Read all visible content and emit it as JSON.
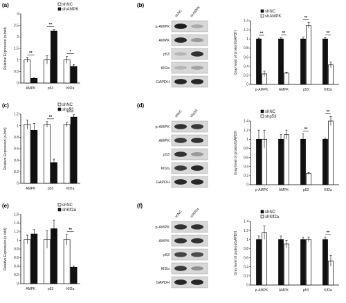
{
  "panels": [
    {
      "id": "a",
      "label": "(a)",
      "chart": 0
    },
    {
      "id": "b",
      "label": "(b)",
      "chart": 1,
      "blot": 0
    },
    {
      "id": "c",
      "label": "(c)",
      "chart": 2
    },
    {
      "id": "d",
      "label": "(d)",
      "chart": 3,
      "blot": 1
    },
    {
      "id": "e",
      "label": "(e)",
      "chart": 4
    },
    {
      "id": "f",
      "label": "(f)",
      "chart": 5,
      "blot": 2
    }
  ],
  "blots": [
    {
      "lanes": [
        "shNC",
        "shAMPK"
      ],
      "rows": [
        "p-AMPK",
        "AMPK",
        "p53",
        "Klf2a",
        "GAPDH"
      ],
      "intensity": [
        [
          0.95,
          0.2
        ],
        [
          0.9,
          0.3
        ],
        [
          0.15,
          0.85
        ],
        [
          0.15,
          0.25
        ],
        [
          0.9,
          0.9
        ]
      ]
    },
    {
      "lanes": [
        "shNC",
        "shp53"
      ],
      "rows": [
        "p-AMPK",
        "AMPK",
        "p53",
        "Klf2a",
        "GAPDH"
      ],
      "intensity": [
        [
          0.85,
          0.8
        ],
        [
          0.8,
          0.85
        ],
        [
          0.85,
          0.3
        ],
        [
          0.8,
          0.9
        ],
        [
          0.9,
          0.9
        ]
      ]
    },
    {
      "lanes": [
        "shNC",
        "shKlf2a"
      ],
      "rows": [
        "p-AMPK",
        "AMPK",
        "p53",
        "Klf2a",
        "GAPDH"
      ],
      "intensity": [
        [
          0.85,
          0.85
        ],
        [
          0.85,
          0.85
        ],
        [
          0.75,
          0.7
        ],
        [
          0.8,
          0.35
        ],
        [
          0.9,
          0.9
        ]
      ]
    }
  ],
  "chart_data": [
    {
      "type": "bar",
      "panel": "a",
      "categories": [
        "AMPK",
        "p53",
        "Klf2a"
      ],
      "series": [
        {
          "name": "shNC",
          "values": [
            1.0,
            1.0,
            1.0
          ],
          "errors": [
            0.1,
            0.18,
            0.15
          ],
          "fill": "white"
        },
        {
          "name": "shAMPK",
          "values": [
            0.2,
            2.25,
            0.72
          ],
          "errors": [
            0.02,
            0.07,
            0.08
          ],
          "fill": "black"
        }
      ],
      "ylabel": "Relative Expression (n-fold)",
      "ylim": [
        0,
        3
      ],
      "yticks": [
        0,
        0.5,
        1.0,
        1.5,
        2.0,
        2.5,
        3.0
      ],
      "sig": [
        "**",
        "**",
        "*"
      ],
      "legend": "top-right"
    },
    {
      "type": "bar",
      "panel": "b",
      "categories": [
        "p-AMPK",
        "AMPK",
        "p53",
        "Klf2a"
      ],
      "series": [
        {
          "name": "shNC",
          "values": [
            1.0,
            1.0,
            1.0,
            1.0
          ],
          "errors": [
            0.02,
            0.03,
            0.04,
            0.03
          ],
          "fill": "black"
        },
        {
          "name": "shAMPK",
          "values": [
            0.23,
            0.25,
            1.3,
            0.43
          ],
          "errors": [
            0.06,
            0.02,
            0.06,
            0.06
          ],
          "fill": "white"
        }
      ],
      "ylabel": "Gray level of protein/GAPDH",
      "ylim": [
        0,
        1.4
      ],
      "yticks": [
        0,
        0.2,
        0.4,
        0.6,
        0.8,
        1.0,
        1.2,
        1.4
      ],
      "sig": [
        "**",
        "**",
        "**",
        "**"
      ],
      "legend": "top-left"
    },
    {
      "type": "bar",
      "panel": "c",
      "categories": [
        "AMPK",
        "p53",
        "Klf2a"
      ],
      "series": [
        {
          "name": "shNC",
          "values": [
            1.02,
            1.02,
            1.02
          ],
          "errors": [
            0.08,
            0.05,
            0.04
          ],
          "fill": "white"
        },
        {
          "name": "shp53",
          "values": [
            0.92,
            0.36,
            1.15
          ],
          "errors": [
            0.12,
            0.06,
            0.04
          ],
          "fill": "black"
        }
      ],
      "ylabel": "Relative Expression (n-fold)",
      "ylim": [
        0,
        1.2
      ],
      "yticks": [
        0,
        0.2,
        0.4,
        0.6,
        0.8,
        1.0,
        1.2
      ],
      "sig": [
        "",
        "**",
        "*"
      ],
      "legend": "top-right"
    },
    {
      "type": "bar",
      "panel": "d",
      "categories": [
        "p-AMPK",
        "AMPK",
        "p53",
        "Klf2a"
      ],
      "series": [
        {
          "name": "shNC",
          "values": [
            1.0,
            1.0,
            1.0,
            1.0
          ],
          "errors": [
            0.2,
            0.1,
            0.12,
            0.03
          ],
          "fill": "black"
        },
        {
          "name": "shp53",
          "values": [
            1.0,
            1.1,
            0.25,
            1.4
          ],
          "errors": [
            0.2,
            0.1,
            0.02,
            0.1
          ],
          "fill": "white"
        }
      ],
      "ylabel": "Gray level of protein/GAPDH",
      "ylim": [
        0,
        1.4
      ],
      "yticks": [
        0,
        0.2,
        0.4,
        0.6,
        0.8,
        1.0,
        1.2,
        1.4
      ],
      "sig": [
        "",
        "",
        "**",
        "**"
      ],
      "legend": "top-left"
    },
    {
      "type": "bar",
      "panel": "e",
      "categories": [
        "AMPK",
        "p53",
        "Klf2a"
      ],
      "series": [
        {
          "name": "shNC",
          "values": [
            1.02,
            1.02,
            1.02
          ],
          "errors": [
            0.1,
            0.2,
            0.12
          ],
          "fill": "white"
        },
        {
          "name": "shKlf2a",
          "values": [
            1.15,
            1.27,
            0.38
          ],
          "errors": [
            0.1,
            0.2,
            0.03
          ],
          "fill": "black"
        }
      ],
      "ylabel": "Relative Expression (n-fold)",
      "ylim": [
        0,
        1.6
      ],
      "yticks": [
        0,
        0.2,
        0.4,
        0.6,
        0.8,
        1.0,
        1.2,
        1.4,
        1.6
      ],
      "sig": [
        "",
        "",
        "**"
      ],
      "legend": "top-right"
    },
    {
      "type": "bar",
      "panel": "f",
      "categories": [
        "p-AMPK",
        "AMPK",
        "p53",
        "Klf2a"
      ],
      "series": [
        {
          "name": "shNC",
          "values": [
            1.0,
            1.0,
            1.0,
            1.0
          ],
          "errors": [
            0.08,
            0.08,
            0.05,
            0.05
          ],
          "fill": "black"
        },
        {
          "name": "shKlf2a",
          "values": [
            1.15,
            0.9,
            1.0,
            0.53
          ],
          "errors": [
            0.15,
            0.08,
            0.05,
            0.12
          ],
          "fill": "white"
        }
      ],
      "ylabel": "Gray level of protein/GAPDH",
      "ylim": [
        0,
        1.4
      ],
      "yticks": [
        0,
        0.2,
        0.4,
        0.6,
        0.8,
        1.0,
        1.2,
        1.4
      ],
      "sig": [
        "",
        "",
        "",
        "**"
      ],
      "legend": "top-left"
    }
  ]
}
